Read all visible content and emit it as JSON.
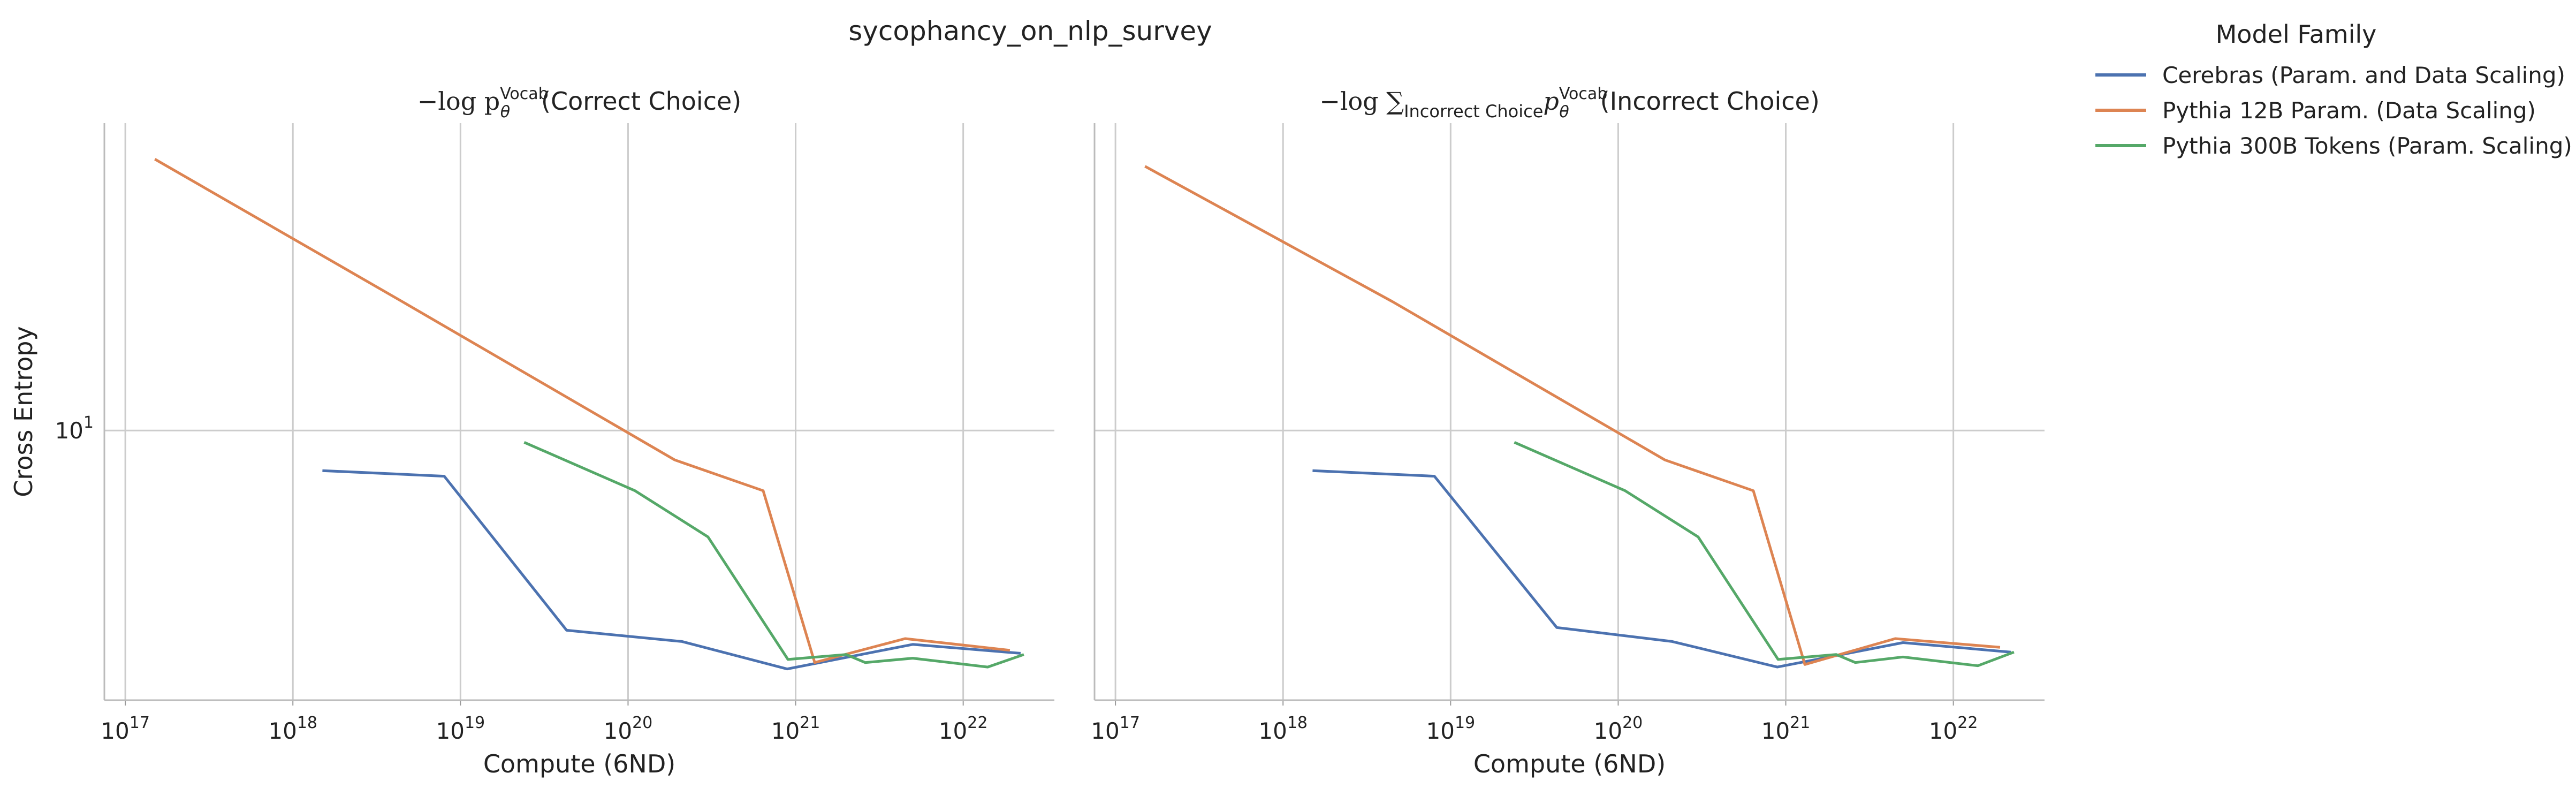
{
  "chart_data": [
    {
      "type": "line",
      "title": "−log p_θ^Vocab(Correct Choice)",
      "title_parts": {
        "prefix": "−log p",
        "sub": "θ",
        "sup": "Vocab",
        "suffix": "(Correct Choice)"
      },
      "xlabel": "Compute (6ND)",
      "ylabel": "Cross Entropy",
      "xscale": "log",
      "yscale": "log",
      "xlim": [
        7.5e+16,
        3.5e+22
      ],
      "ylim": [
        3.1,
        38
      ],
      "grid": true,
      "x_ticks": [
        "1e17",
        "1e18",
        "1e19",
        "1e20",
        "1e21",
        "1e22"
      ],
      "y_ticks": [
        "1e1"
      ],
      "series": [
        {
          "name": "Cerebras (Param. and Data Scaling)",
          "color": "#4c72b0",
          "x": [
            1.5e+18,
            8e+18,
            4.3e+19,
            2.1e+20,
            8.9e+20,
            5e+21,
            2.2e+22
          ],
          "y": [
            8.4,
            8.2,
            4.2,
            4.0,
            3.55,
            3.95,
            3.8
          ]
        },
        {
          "name": "Pythia 12B Param. (Data Scaling)",
          "color": "#dd8452",
          "x": [
            1.5e+17,
            4.5e+18,
            1.9e+20,
            6.4e+20,
            1.3e+21,
            4.5e+21,
            1.9e+22
          ],
          "y": [
            32.5,
            17.5,
            8.8,
            7.7,
            3.65,
            4.05,
            3.85
          ]
        },
        {
          "name": "Pythia 300B Tokens (Param. Scaling)",
          "color": "#55a868",
          "x": [
            2.4e+19,
            1.1e+20,
            3e+20,
            9e+20,
            2e+21,
            2.6e+21,
            5e+21,
            1.4e+22,
            2.3e+22
          ],
          "y": [
            9.5,
            7.7,
            6.3,
            3.7,
            3.78,
            3.65,
            3.72,
            3.58,
            3.78
          ]
        }
      ]
    },
    {
      "type": "line",
      "title": "−log ∑_Incorrect Choice p_θ^Vocab(Incorrect Choice)",
      "title_parts": {
        "prefix": "−log ∑",
        "sum_sub": "Incorrect Choice",
        "p": "p",
        "sub": "θ",
        "sup": "Vocab",
        "suffix": "(Incorrect Choice)"
      },
      "xlabel": "Compute (6ND)",
      "ylabel": "",
      "xscale": "log",
      "yscale": "log",
      "xlim": [
        7.5e+16,
        3.5e+22
      ],
      "ylim": [
        3.1,
        38
      ],
      "grid": true,
      "x_ticks": [
        "1e17",
        "1e18",
        "1e19",
        "1e20",
        "1e21",
        "1e22"
      ],
      "y_ticks": [],
      "series": [
        {
          "name": "Cerebras (Param. and Data Scaling)",
          "color": "#4c72b0",
          "x": [
            1.5e+18,
            8e+18,
            4.3e+19,
            2.1e+20,
            8.9e+20,
            5e+21,
            2.2e+22
          ],
          "y": [
            8.4,
            8.2,
            4.25,
            4.0,
            3.58,
            3.98,
            3.82
          ]
        },
        {
          "name": "Pythia 12B Param. (Data Scaling)",
          "color": "#dd8452",
          "x": [
            1.5e+17,
            4.5e+18,
            1.9e+20,
            6.4e+20,
            1.3e+21,
            4.5e+21,
            1.9e+22
          ],
          "y": [
            31.5,
            17.5,
            8.8,
            7.7,
            3.62,
            4.05,
            3.9
          ]
        },
        {
          "name": "Pythia 300B Tokens (Param. Scaling)",
          "color": "#55a868",
          "x": [
            2.4e+19,
            1.1e+20,
            3e+20,
            9e+20,
            2e+21,
            2.6e+21,
            5e+21,
            1.4e+22,
            2.3e+22
          ],
          "y": [
            9.5,
            7.7,
            6.3,
            3.7,
            3.78,
            3.65,
            3.74,
            3.6,
            3.82
          ]
        }
      ]
    }
  ],
  "figure": {
    "suptitle": "sycophancy_on_nlp_survey",
    "legend": {
      "title": "Model Family",
      "placement": "outside-right",
      "entries": [
        {
          "label": "Cerebras (Param. and Data Scaling)",
          "color": "#4c72b0"
        },
        {
          "label": "Pythia 12B Param. (Data Scaling)",
          "color": "#dd8452"
        },
        {
          "label": "Pythia 300B Tokens (Param. Scaling)",
          "color": "#55a868"
        }
      ]
    }
  }
}
